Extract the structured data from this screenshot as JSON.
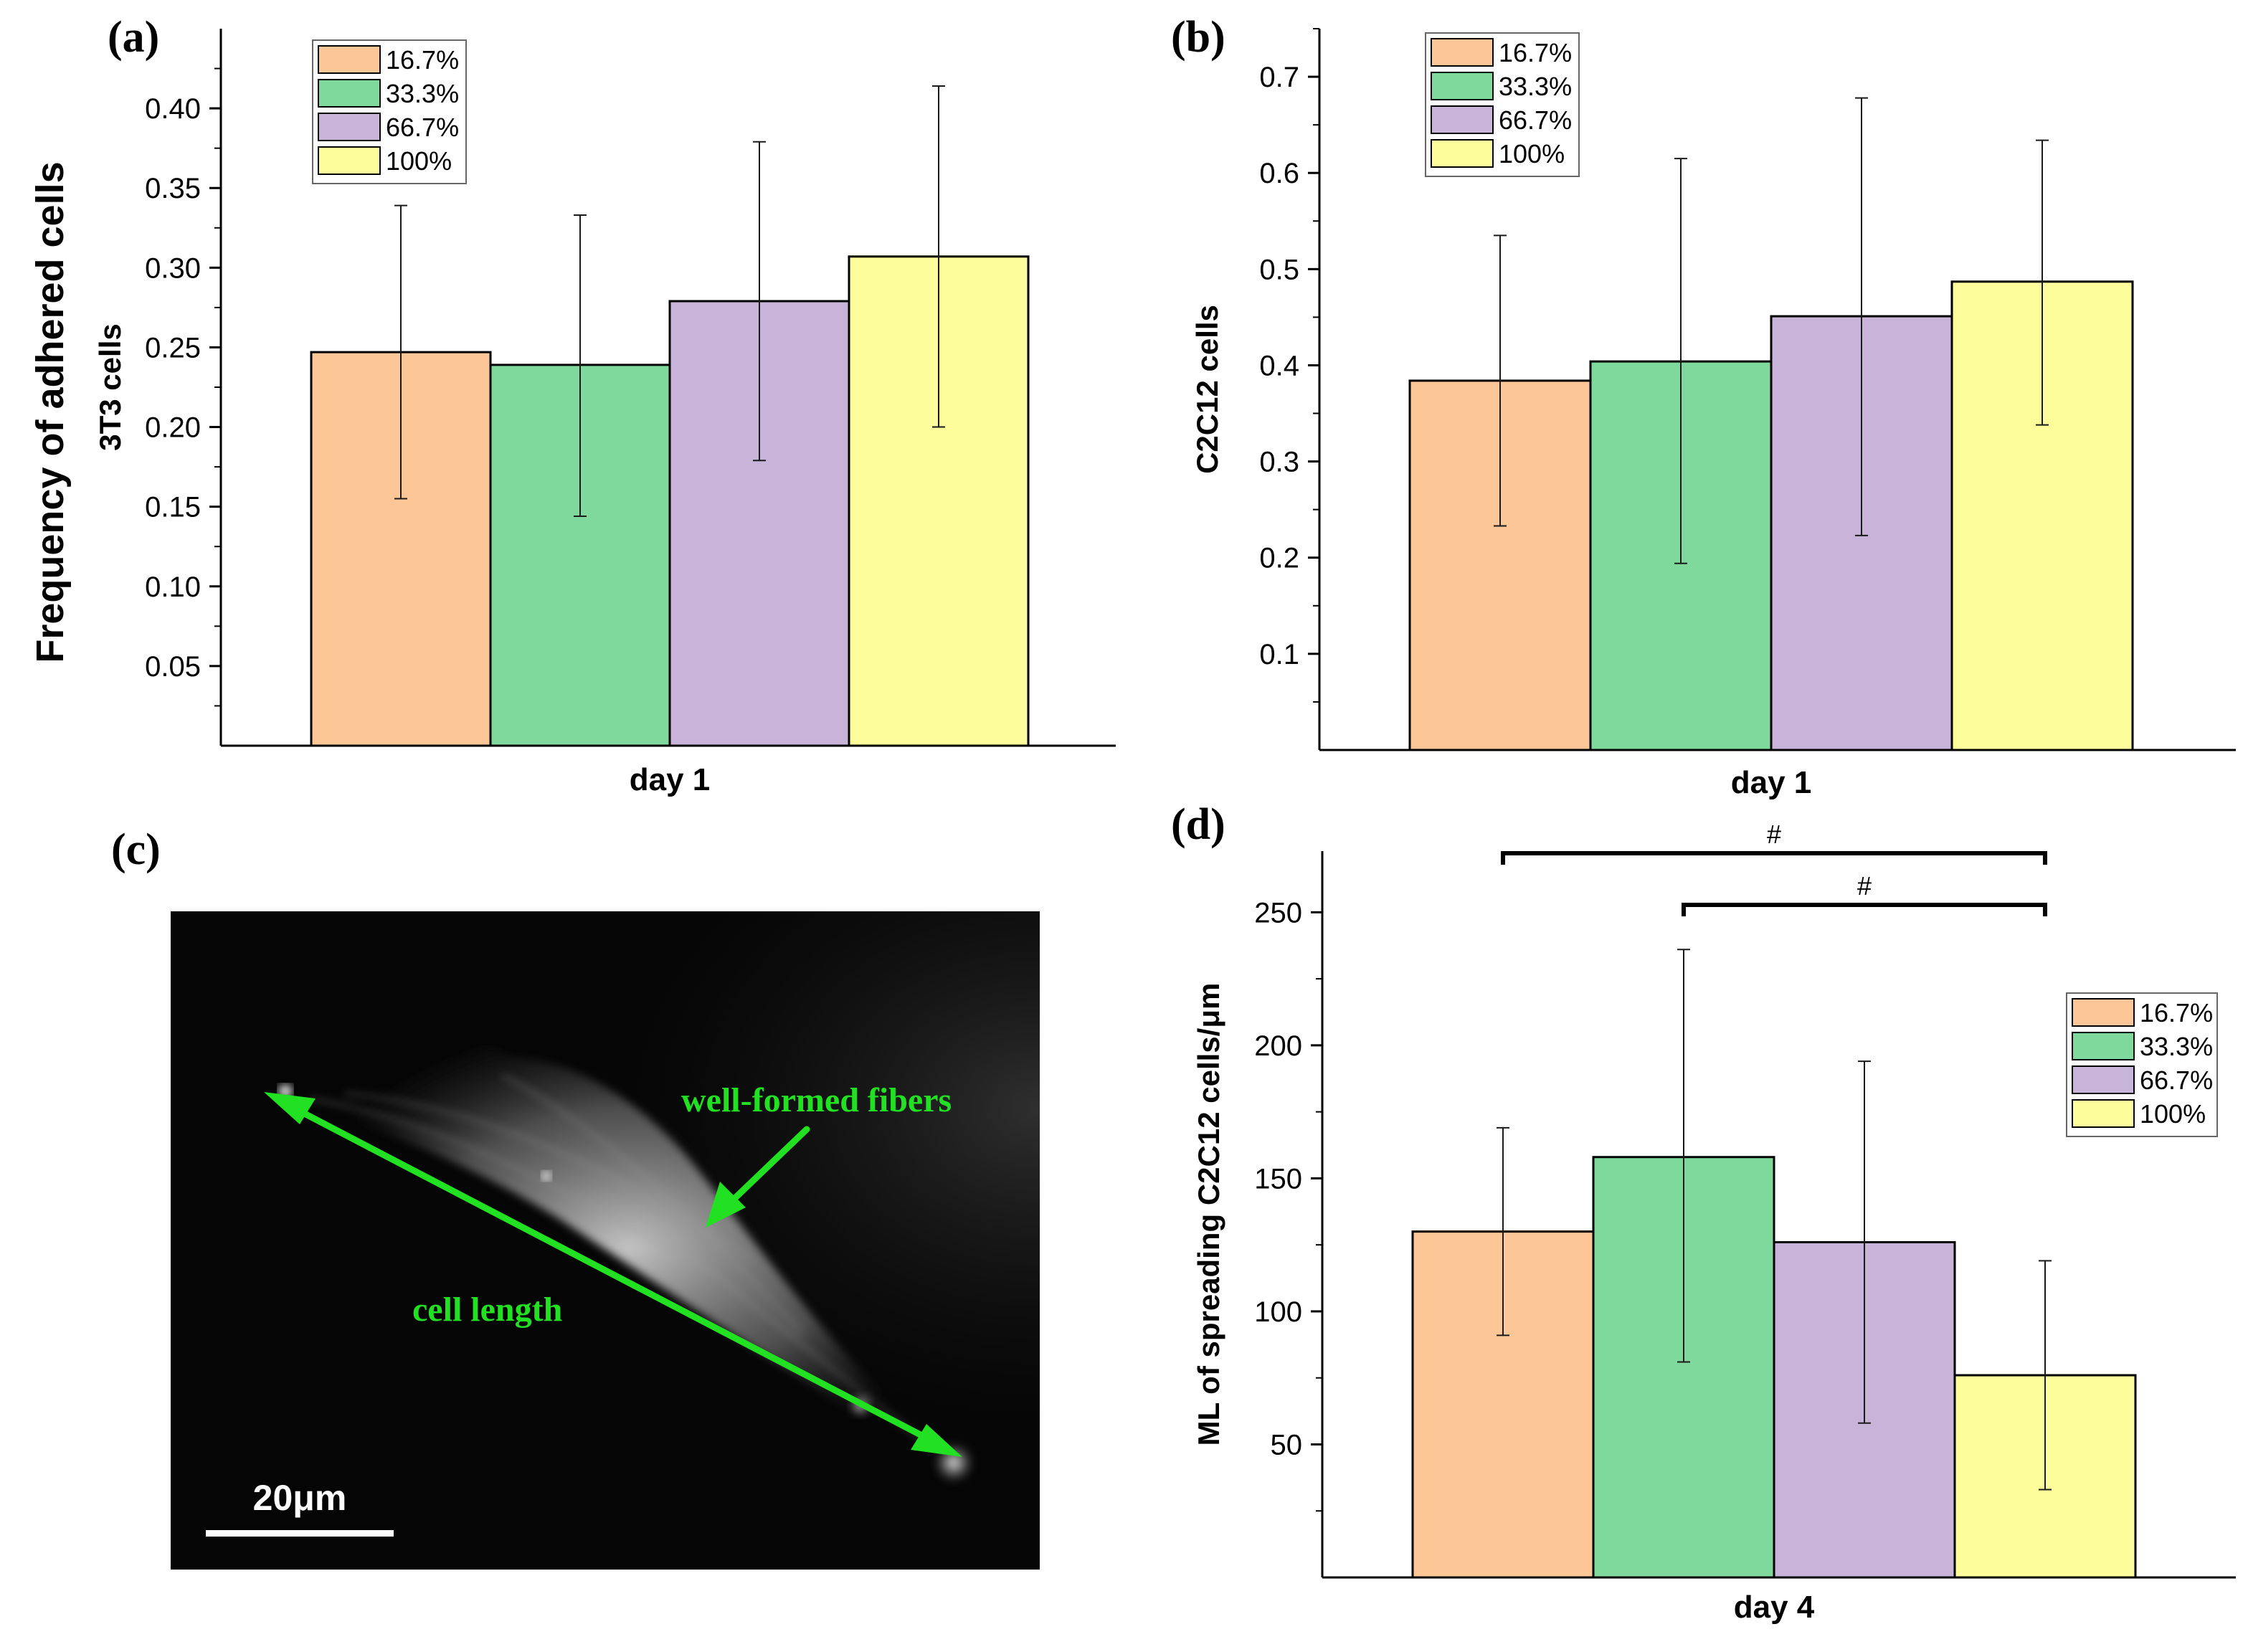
{
  "figure": {
    "main_ylabel": "Frequency of adhered cells",
    "series_colors": [
      "#FDC697",
      "#80D99C",
      "#C8B3D9",
      "#FEFD9C"
    ],
    "error_bar_color": "#1a1a1a",
    "axis_color": "#000000"
  },
  "chart_data": [
    {
      "panel": "a",
      "panel_label": "(a)",
      "type": "bar",
      "categories": [
        "day 1"
      ],
      "xlabel": "day 1",
      "ylabel": "3T3 cells",
      "ylim": [
        0,
        0.45
      ],
      "yticks": [
        0.05,
        0.1,
        0.15,
        0.2,
        0.25,
        0.3,
        0.35,
        0.4
      ],
      "ytick_labels": [
        "0.05",
        "0.10",
        "0.15",
        "0.20",
        "0.25",
        "0.30",
        "0.35",
        "0.40"
      ],
      "series": [
        {
          "name": "16.7%",
          "values": [
            0.247
          ],
          "err_low": [
            0.155
          ],
          "err_high": [
            0.339
          ]
        },
        {
          "name": "33.3%",
          "values": [
            0.239
          ],
          "err_low": [
            0.144
          ],
          "err_high": [
            0.333
          ]
        },
        {
          "name": "66.7%",
          "values": [
            0.279
          ],
          "err_low": [
            0.179
          ],
          "err_high": [
            0.379
          ]
        },
        {
          "name": "100%",
          "values": [
            0.307
          ],
          "err_low": [
            0.2
          ],
          "err_high": [
            0.414
          ]
        }
      ],
      "legend_position": "top-left",
      "grid": false
    },
    {
      "panel": "b",
      "panel_label": "(b)",
      "type": "bar",
      "categories": [
        "day 1"
      ],
      "xlabel": "day 1",
      "ylabel": "C2C12 cells",
      "ylim": [
        0,
        0.75
      ],
      "yticks": [
        0.1,
        0.2,
        0.3,
        0.4,
        0.5,
        0.6,
        0.7
      ],
      "ytick_labels": [
        "0.1",
        "0.2",
        "0.3",
        "0.4",
        "0.5",
        "0.6",
        "0.7"
      ],
      "series": [
        {
          "name": "16.7%",
          "values": [
            0.384
          ],
          "err_low": [
            0.233
          ],
          "err_high": [
            0.535
          ]
        },
        {
          "name": "33.3%",
          "values": [
            0.404
          ],
          "err_low": [
            0.194
          ],
          "err_high": [
            0.615
          ]
        },
        {
          "name": "66.7%",
          "values": [
            0.451
          ],
          "err_low": [
            0.223
          ],
          "err_high": [
            0.678
          ]
        },
        {
          "name": "100%",
          "values": [
            0.487
          ],
          "err_low": [
            0.338
          ],
          "err_high": [
            0.634
          ]
        }
      ],
      "legend_position": "top-left",
      "grid": false
    },
    {
      "panel": "d",
      "panel_label": "(d)",
      "type": "bar",
      "categories": [
        "day 4"
      ],
      "xlabel": "day 4",
      "ylabel": "ML of spreading C2C12 cells/μm",
      "ylim": [
        0,
        273
      ],
      "yticks": [
        50,
        100,
        150,
        200,
        250
      ],
      "ytick_labels": [
        "50",
        "100",
        "150",
        "200",
        "250"
      ],
      "series": [
        {
          "name": "16.7%",
          "values": [
            130
          ],
          "err_low": [
            91
          ],
          "err_high": [
            169
          ]
        },
        {
          "name": "33.3%",
          "values": [
            158
          ],
          "err_low": [
            81
          ],
          "err_high": [
            236
          ]
        },
        {
          "name": "66.7%",
          "values": [
            126
          ],
          "err_low": [
            58
          ],
          "err_high": [
            194
          ]
        },
        {
          "name": "100%",
          "values": [
            76
          ],
          "err_low": [
            33
          ],
          "err_high": [
            119
          ]
        }
      ],
      "significance": [
        {
          "label": "#",
          "from": "16.7%",
          "to": "100%"
        },
        {
          "label": "#",
          "from": "33.3%",
          "to": "100%"
        }
      ],
      "legend_position": "right",
      "grid": false
    }
  ],
  "micrograph": {
    "panel_label": "(c)",
    "annotation_fibers": "well-formed fibers",
    "annotation_length": "cell length",
    "scale_bar_label": "20μm",
    "annotation_color": "#22E022"
  }
}
